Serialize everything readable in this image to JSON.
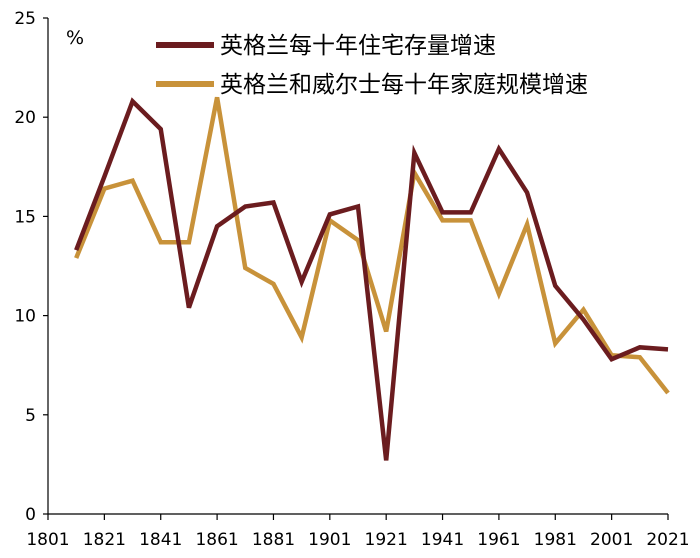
{
  "chart_data": {
    "type": "line",
    "title": "",
    "xlabel": "",
    "ylabel": "",
    "unit_label": "%",
    "x": [
      1811,
      1821,
      1831,
      1841,
      1851,
      1861,
      1871,
      1881,
      1891,
      1901,
      1911,
      1921,
      1931,
      1941,
      1951,
      1961,
      1971,
      1981,
      1991,
      2001,
      2011,
      2021
    ],
    "xticks": [
      "1801",
      "1821",
      "1841",
      "1861",
      "1881",
      "1901",
      "1921",
      "1941",
      "1961",
      "1981",
      "2001",
      "2021"
    ],
    "xlim": [
      1801,
      2021
    ],
    "yticks": [
      "0",
      "5",
      "10",
      "15",
      "20",
      "25"
    ],
    "ylim": [
      0,
      25
    ],
    "grid": false,
    "legend_position": "top-center",
    "series": [
      {
        "name": "英格兰每十年住宅存量增速",
        "color": "#6b1c1f",
        "values": [
          13.3,
          17.0,
          20.8,
          19.4,
          10.4,
          14.5,
          15.5,
          15.7,
          11.7,
          15.1,
          15.5,
          2.7,
          18.2,
          15.2,
          15.2,
          18.4,
          16.2,
          11.5,
          9.8,
          7.8,
          8.4,
          8.3
        ]
      },
      {
        "name": "英格兰和威尔士每十年家庭规模增速",
        "color": "#c8923a",
        "values": [
          12.9,
          16.4,
          16.8,
          13.7,
          13.7,
          21.0,
          12.4,
          11.6,
          8.9,
          14.8,
          13.8,
          9.2,
          17.2,
          14.8,
          14.8,
          11.1,
          14.6,
          8.6,
          10.3,
          8.0,
          7.9,
          6.1
        ]
      }
    ]
  }
}
